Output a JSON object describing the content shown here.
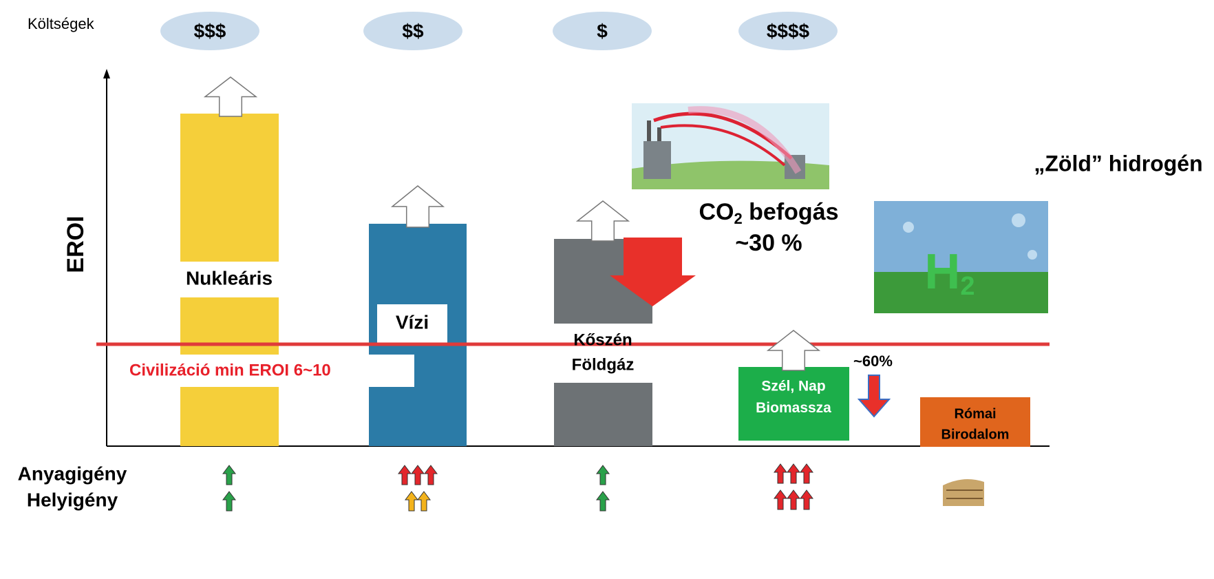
{
  "header": {
    "cost_label": "Költségek",
    "costs": [
      "$$$",
      "$$",
      "$",
      "$$$$"
    ]
  },
  "axis": {
    "label": "EROI"
  },
  "bars": [
    {
      "lines": [
        "Nukleáris"
      ]
    },
    {
      "lines": [
        "Vízi"
      ]
    },
    {
      "lines": [
        "Kőszén",
        "Földgáz"
      ]
    },
    {
      "lines": [
        "Szél, Nap",
        "Biomassza"
      ]
    },
    {
      "lines": [
        "Római",
        "Birodalom"
      ]
    }
  ],
  "threshold": {
    "label": "Civilizáció min EROI  6~10"
  },
  "co2": {
    "prefix": "CO",
    "sub": "2",
    "rest": " befogás",
    "value": "~30 %"
  },
  "hydrogen": {
    "label": "„Zöld” hidrogén",
    "icon": "H",
    "icon_sub": "2"
  },
  "renewable_drop": "~60%",
  "rows": [
    "Anyagigény",
    "Helyigény"
  ]
}
